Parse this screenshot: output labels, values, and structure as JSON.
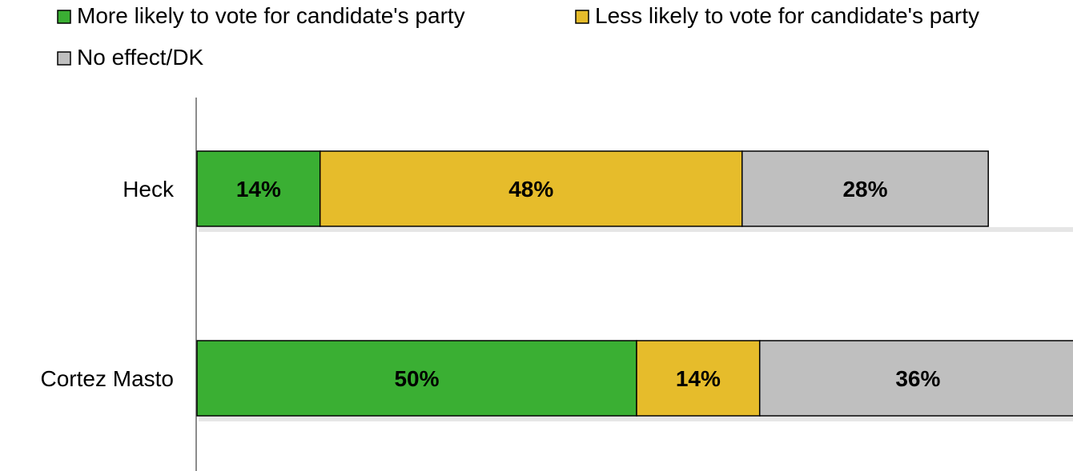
{
  "chart_data": {
    "type": "bar",
    "orientation": "horizontal",
    "stacked": true,
    "categories": [
      "Heck",
      "Cortez Masto"
    ],
    "series": [
      {
        "name": "More likely to vote for candidate's party",
        "values": [
          14,
          50
        ],
        "color": "#3aaf33"
      },
      {
        "name": "Less likely to vote for candidate's party",
        "values": [
          48,
          14
        ],
        "color": "#e6bc2b"
      },
      {
        "name": "No effect/DK",
        "values": [
          28,
          36
        ],
        "color": "#bfbfbf"
      }
    ],
    "data_labels": [
      [
        "14%",
        "48%",
        "28%"
      ],
      [
        "50%",
        "14%",
        "36%"
      ]
    ],
    "xlim": [
      0,
      100
    ],
    "grid": false,
    "legend": "top"
  }
}
